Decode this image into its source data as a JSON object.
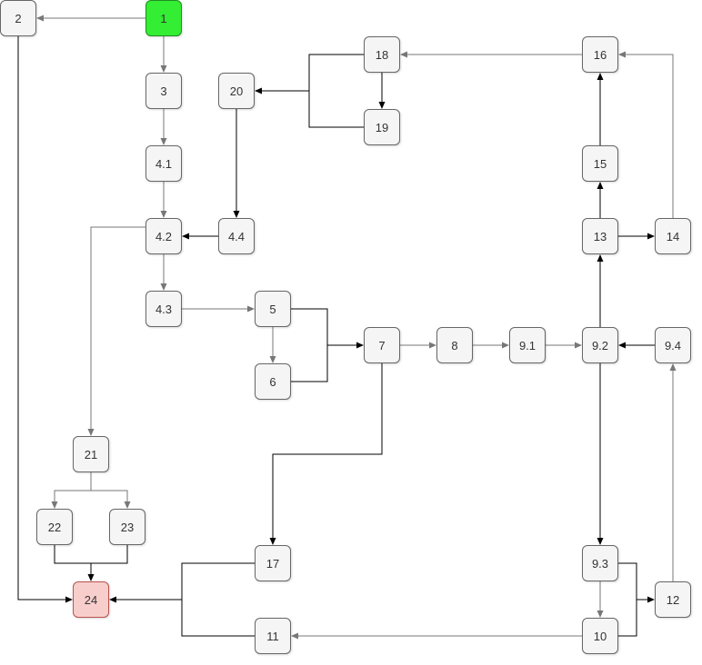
{
  "colors": {
    "node_fill": "#f5f5f5",
    "start_fill": "#33ee33",
    "end_fill": "#f8cecc",
    "end_border": "#b85450",
    "edge_gray": "#777777",
    "edge_black": "#000000"
  },
  "nodes": {
    "n1": "1",
    "n2": "2",
    "n3": "3",
    "n4_1": "4.1",
    "n4_2": "4.2",
    "n4_3": "4.3",
    "n4_4": "4.4",
    "n5": "5",
    "n6": "6",
    "n7": "7",
    "n8": "8",
    "n9_1": "9.1",
    "n9_2": "9.2",
    "n9_3": "9.3",
    "n9_4": "9.4",
    "n10": "10",
    "n11": "11",
    "n12": "12",
    "n13": "13",
    "n14": "14",
    "n15": "15",
    "n16": "16",
    "n17": "17",
    "n18": "18",
    "n19": "19",
    "n20": "20",
    "n21": "21",
    "n22": "22",
    "n23": "23",
    "n24": "24"
  },
  "edges": [
    {
      "from": "1",
      "to": "2",
      "color": "gray"
    },
    {
      "from": "1",
      "to": "3",
      "color": "gray"
    },
    {
      "from": "2",
      "to": "24",
      "color": "black"
    },
    {
      "from": "3",
      "to": "4.1",
      "color": "gray"
    },
    {
      "from": "4.1",
      "to": "4.2",
      "color": "gray"
    },
    {
      "from": "4.2",
      "to": "4.3",
      "color": "gray"
    },
    {
      "from": "4.2",
      "to": "21",
      "color": "gray"
    },
    {
      "from": "4.4",
      "to": "4.2",
      "color": "black"
    },
    {
      "from": "4.3",
      "to": "5",
      "color": "gray"
    },
    {
      "from": "5",
      "to": "6",
      "color": "gray"
    },
    {
      "from": "5",
      "to": "7",
      "color": "black"
    },
    {
      "from": "6",
      "to": "7",
      "color": "black"
    },
    {
      "from": "7",
      "to": "8",
      "color": "gray"
    },
    {
      "from": "7",
      "to": "17",
      "color": "black"
    },
    {
      "from": "8",
      "to": "9.1",
      "color": "gray"
    },
    {
      "from": "9.1",
      "to": "9.2",
      "color": "gray"
    },
    {
      "from": "9.4",
      "to": "9.2",
      "color": "black"
    },
    {
      "from": "9.2",
      "to": "13",
      "color": "black"
    },
    {
      "from": "9.2",
      "to": "9.3",
      "color": "black"
    },
    {
      "from": "9.3",
      "to": "10",
      "color": "gray"
    },
    {
      "from": "9.3",
      "to": "12",
      "color": "black"
    },
    {
      "from": "10",
      "to": "12",
      "color": "black"
    },
    {
      "from": "12",
      "to": "9.4",
      "color": "gray"
    },
    {
      "from": "10",
      "to": "11",
      "color": "gray"
    },
    {
      "from": "13",
      "to": "15",
      "color": "black"
    },
    {
      "from": "13",
      "to": "14",
      "color": "black"
    },
    {
      "from": "15",
      "to": "16",
      "color": "black"
    },
    {
      "from": "14",
      "to": "16",
      "color": "gray"
    },
    {
      "from": "16",
      "to": "18",
      "color": "gray"
    },
    {
      "from": "18",
      "to": "19",
      "color": "black"
    },
    {
      "from": "18",
      "to": "20",
      "color": "black"
    },
    {
      "from": "19",
      "to": "20",
      "color": "black"
    },
    {
      "from": "20",
      "to": "4.4",
      "color": "black"
    },
    {
      "from": "21",
      "to": "22",
      "color": "gray"
    },
    {
      "from": "21",
      "to": "23",
      "color": "gray"
    },
    {
      "from": "22",
      "to": "24",
      "color": "black"
    },
    {
      "from": "23",
      "to": "24",
      "color": "black"
    },
    {
      "from": "17",
      "to": "24",
      "color": "black"
    },
    {
      "from": "11",
      "to": "24",
      "color": "black"
    }
  ]
}
